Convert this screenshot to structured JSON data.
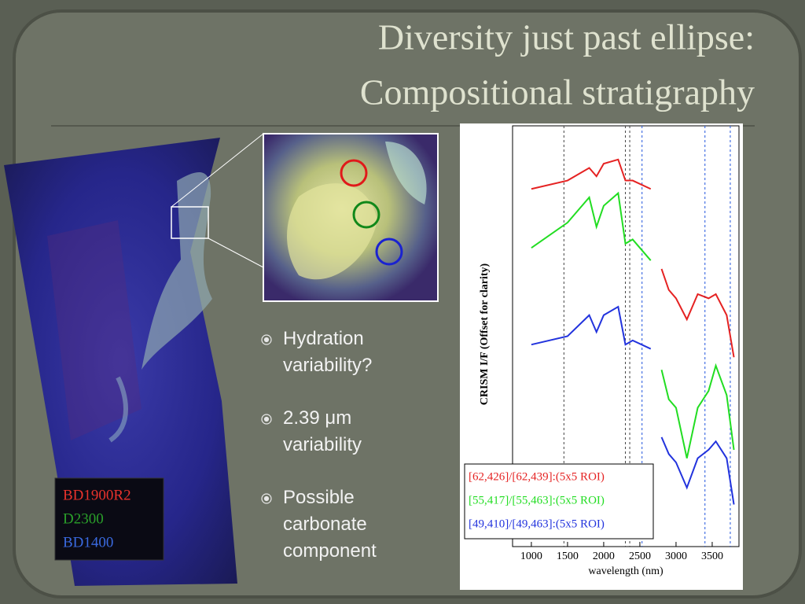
{
  "title": [
    "Diversity just past ellipse:",
    "Compositional stratigraphy"
  ],
  "bullets": [
    "Hydration variability?",
    "2.39 μm variability",
    "Possible carbonate component"
  ],
  "map_legend": [
    {
      "label": "BD1900R2",
      "color": "#e8322c"
    },
    {
      "label": "D2300",
      "color": "#2aa02a"
    },
    {
      "label": "BD1400",
      "color": "#3a6ae0"
    }
  ],
  "chart_data": {
    "type": "line",
    "xlabel": "wavelength (nm)",
    "ylabel": "CRISM I/F (Offset for clarity)",
    "x": [
      1000,
      1500,
      1800,
      1900,
      2000,
      2200,
      2300,
      2400,
      2650,
      2700,
      2800,
      2900,
      3000,
      3150,
      3300,
      3450,
      3550,
      3700,
      3800
    ],
    "series": [
      {
        "name": "[62,426]/[62,439]:(5x5 ROI)",
        "color": "#e52222",
        "values": [
          8.5,
          8.7,
          9.0,
          8.8,
          9.1,
          9.2,
          8.7,
          8.7,
          8.5,
          null,
          6.6,
          6.1,
          5.9,
          5.4,
          6.0,
          5.9,
          6.0,
          5.5,
          4.5
        ]
      },
      {
        "name": "[55,417]/[55,463]:(5x5 ROI)",
        "color": "#22dd22",
        "values": [
          7.1,
          7.7,
          8.3,
          7.6,
          8.1,
          8.4,
          7.2,
          7.3,
          6.8,
          null,
          4.2,
          3.5,
          3.3,
          2.1,
          3.3,
          3.7,
          4.3,
          3.6,
          2.3
        ]
      },
      {
        "name": "[49,410]/[49,463]:(5x5 ROI)",
        "color": "#2233dd",
        "values": [
          4.8,
          5.0,
          5.5,
          5.1,
          5.5,
          5.7,
          4.8,
          4.9,
          4.7,
          null,
          2.6,
          2.2,
          2.0,
          1.4,
          2.1,
          2.3,
          2.5,
          2.1,
          1.0
        ]
      }
    ],
    "vlines": [
      {
        "value": 1450,
        "color": "#444444"
      },
      {
        "value": 2300,
        "color": "#444444"
      },
      {
        "value": 2360,
        "color": "#444444"
      },
      {
        "value": 2530,
        "color": "#2255dd"
      },
      {
        "value": 3400,
        "color": "#2255dd"
      },
      {
        "value": 3750,
        "color": "#2255dd"
      }
    ],
    "xlim": [
      740,
      3870
    ],
    "ylim": [
      0,
      10
    ],
    "xticks": [
      1000,
      1500,
      2000,
      2500,
      3000,
      3500
    ]
  }
}
